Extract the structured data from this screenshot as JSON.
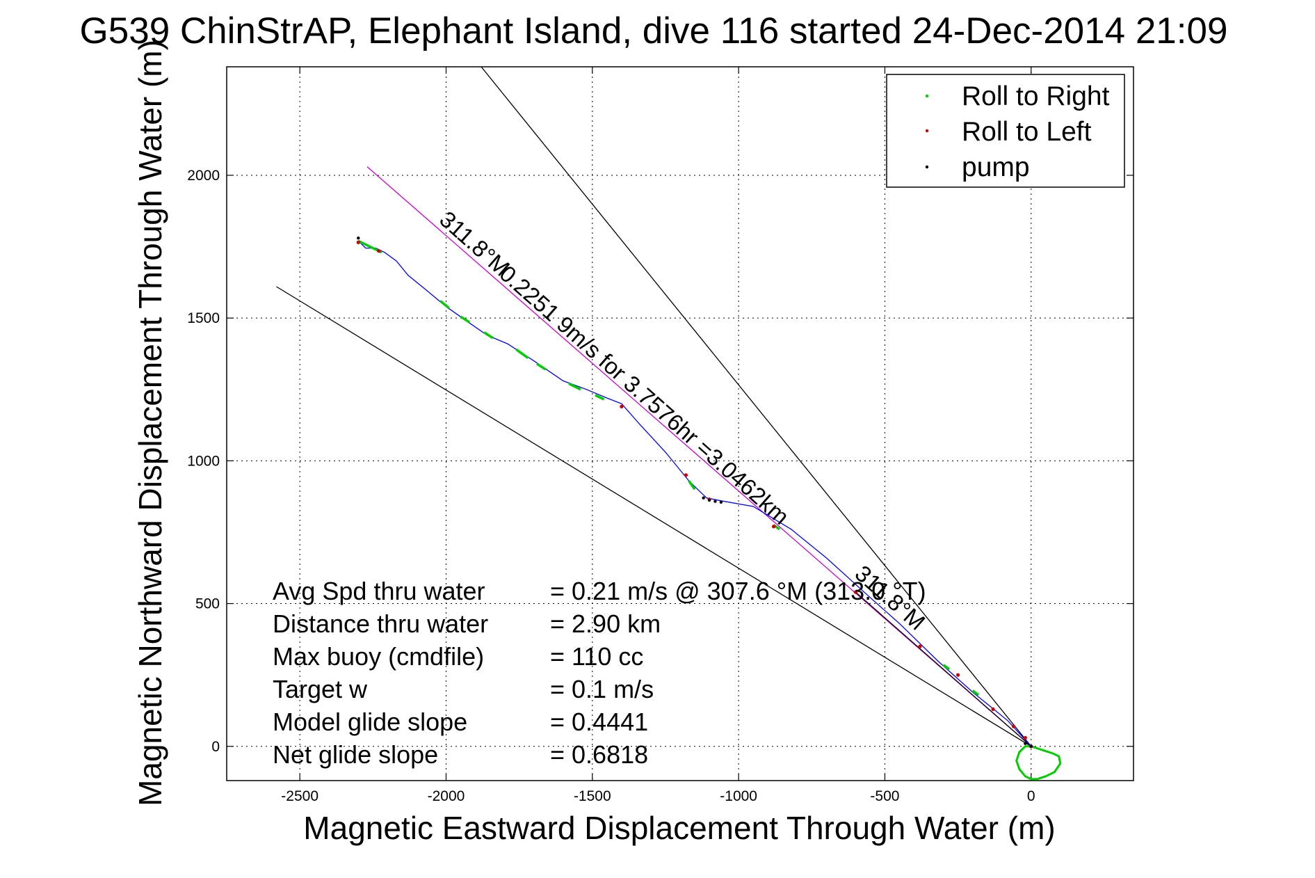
{
  "chart_data": {
    "type": "line",
    "title": "G539 ChinStrAP, Elephant Island, dive 116 started 24-Dec-2014 21:09",
    "xlabel": "Magnetic Eastward Displacement Through Water (m)",
    "ylabel": "Magnetic Northward Displacement Through Water (m)",
    "xlim": [
      -2750,
      350
    ],
    "ylim": [
      -120,
      2380
    ],
    "xticks": [
      -2500,
      -2000,
      -1500,
      -1000,
      -500,
      0
    ],
    "yticks": [
      0,
      500,
      1000,
      1500,
      2000
    ],
    "xtick_labels": [
      "-2500",
      "-2000",
      "-1500",
      "-1000",
      "-500",
      "0"
    ],
    "ytick_labels": [
      "0",
      "500",
      "1000",
      "1500",
      "2000"
    ],
    "grid": true,
    "legend": {
      "placement": "top-right",
      "entries": [
        {
          "label": "Roll to Right",
          "color": "#00cc00"
        },
        {
          "label": "Roll to Left",
          "color": "#cc0000"
        },
        {
          "label": "pump",
          "color": "#000000"
        }
      ]
    },
    "track": {
      "color": "#0000ff",
      "x": [
        0,
        -80,
        -200,
        -320,
        -450,
        -560,
        -700,
        -820,
        -950,
        -1060,
        -1110,
        -1170,
        -1250,
        -1340,
        -1400,
        -1450,
        -1520,
        -1600,
        -1700,
        -1790,
        -1860,
        -1930,
        -2000,
        -2070,
        -2130,
        -2170,
        -2210,
        -2240,
        -2275,
        -2300
      ],
      "y": [
        0,
        90,
        190,
        300,
        430,
        530,
        660,
        760,
        840,
        860,
        870,
        930,
        1030,
        1130,
        1200,
        1220,
        1250,
        1280,
        1350,
        1410,
        1440,
        1490,
        1540,
        1600,
        1650,
        1700,
        1730,
        1745,
        1745,
        1770
      ]
    },
    "surface_loop": {
      "color": "#00cc00",
      "x": [
        0,
        -20,
        -40,
        -50,
        -40,
        -20,
        0,
        20,
        50,
        80,
        100,
        95,
        75,
        45,
        15,
        0
      ],
      "y": [
        0,
        0,
        -20,
        -50,
        -80,
        -105,
        -115,
        -115,
        -105,
        -90,
        -60,
        -35,
        -25,
        -15,
        -5,
        0
      ]
    },
    "roll_right_segments": [
      {
        "x": [
          -2300,
          -2220
        ],
        "y": [
          1770,
          1730
        ]
      },
      {
        "x": [
          -2020,
          -1990
        ],
        "y": [
          1560,
          1535
        ]
      },
      {
        "x": [
          -1950,
          -1920
        ],
        "y": [
          1505,
          1485
        ]
      },
      {
        "x": [
          -1870,
          -1840
        ],
        "y": [
          1450,
          1430
        ]
      },
      {
        "x": [
          -1760,
          -1720
        ],
        "y": [
          1390,
          1360
        ]
      },
      {
        "x": [
          -1690,
          -1660
        ],
        "y": [
          1340,
          1320
        ]
      },
      {
        "x": [
          -1580,
          -1540
        ],
        "y": [
          1270,
          1250
        ]
      },
      {
        "x": [
          -1490,
          -1460
        ],
        "y": [
          1230,
          1215
        ]
      },
      {
        "x": [
          -1170,
          -1150
        ],
        "y": [
          930,
          900
        ]
      },
      {
        "x": [
          -880,
          -860
        ],
        "y": [
          775,
          760
        ]
      },
      {
        "x": [
          -300,
          -280
        ],
        "y": [
          285,
          270
        ]
      },
      {
        "x": [
          -200,
          -180
        ],
        "y": [
          195,
          180
        ]
      }
    ],
    "roll_left_points": {
      "x": [
        -2300,
        -2230,
        -1400,
        -1180,
        -1100,
        -880,
        -600,
        -380,
        -250,
        -130,
        -60,
        -20,
        0
      ],
      "y": [
        1765,
        1735,
        1190,
        950,
        865,
        770,
        540,
        350,
        250,
        130,
        70,
        30,
        0
      ]
    },
    "pump_points": {
      "x": [
        -2300,
        -1120,
        -1100,
        -1080,
        -1060,
        -20,
        0
      ],
      "y": [
        1780,
        870,
        862,
        858,
        855,
        10,
        0
      ]
    },
    "lines": [
      {
        "name": "current_heading",
        "color": "#cc00cc",
        "x": [
          -2270,
          0
        ],
        "y": [
          2030,
          0
        ]
      },
      {
        "name": "bound_upper",
        "color": "#000000",
        "x": [
          -1880,
          0
        ],
        "y": [
          2380,
          0
        ]
      },
      {
        "name": "bound_lower",
        "color": "#000000",
        "x": [
          -2580,
          0
        ],
        "y": [
          1610,
          0
        ]
      },
      {
        "name": "heading_to_target",
        "color": "#000000",
        "x": [
          -600,
          0
        ],
        "y": [
          540,
          0
        ]
      }
    ],
    "annotations": [
      {
        "text": "311.8°M",
        "x": -1920,
        "y": 1740,
        "angle": 41.5
      },
      {
        "text": "0.2251 9m/s for 3.7576hr =3.0462km",
        "x": -1340,
        "y": 1210,
        "angle": 41.5
      },
      {
        "text": "311.8°M",
        "x": -500,
        "y": 500,
        "angle": 41.5
      }
    ],
    "stats": [
      {
        "label": "Avg Spd thru water",
        "value": "=  0.21 m/s @ 307.6 °M (313.0 °T)"
      },
      {
        "label": "Distance thru water",
        "value": "=  2.90 km"
      },
      {
        "label": "Max buoy (cmdfile)",
        "value": "= 110 cc"
      },
      {
        "label": "Target w",
        "value": "= 0.1 m/s"
      },
      {
        "label": "Model glide slope",
        "value": "= 0.4441"
      },
      {
        "label": "Net glide slope",
        "value": "= 0.6818"
      }
    ]
  }
}
